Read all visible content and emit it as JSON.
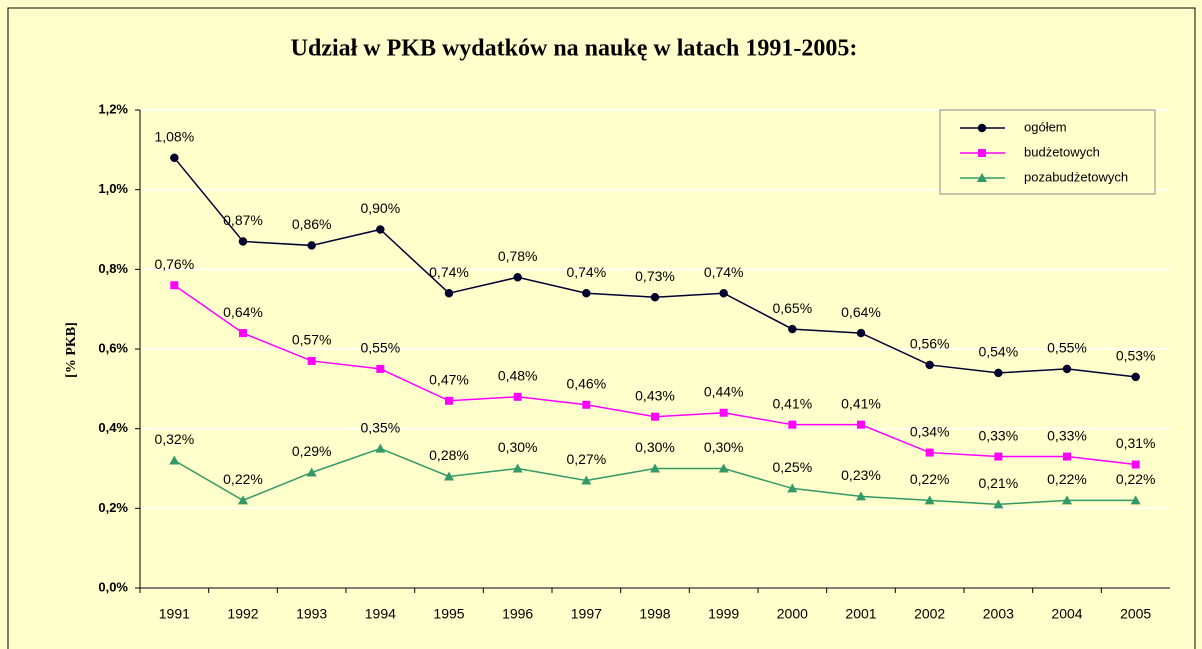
{
  "chart_data": {
    "type": "line",
    "title": "Udział w PKB  wydatków na naukę w latach 1991-2005:",
    "y_label": "[% PKB]",
    "categories": [
      "1991",
      "1992",
      "1993",
      "1994",
      "1995",
      "1996",
      "1997",
      "1998",
      "1999",
      "2000",
      "2001",
      "2002",
      "2003",
      "2004",
      "2005"
    ],
    "series": [
      {
        "name": "ogółem",
        "color": "#000033",
        "marker": "circle",
        "values": [
          1.08,
          0.87,
          0.86,
          0.9,
          0.74,
          0.78,
          0.74,
          0.73,
          0.74,
          0.65,
          0.64,
          0.56,
          0.54,
          0.55,
          0.53
        ],
        "value_labels": [
          "1,08%",
          "0,87%",
          "0,86%",
          "0,90%",
          "0,74%",
          "0,78%",
          "0,74%",
          "0,73%",
          "0,74%",
          "0,65%",
          "0,64%",
          "0,56%",
          "0,54%",
          "0,55%",
          "0,53%"
        ]
      },
      {
        "name": "budżetowych",
        "color": "#ff00ff",
        "marker": "square",
        "values": [
          0.76,
          0.64,
          0.57,
          0.55,
          0.47,
          0.48,
          0.46,
          0.43,
          0.44,
          0.41,
          0.41,
          0.34,
          0.33,
          0.33,
          0.31
        ],
        "value_labels": [
          "0,76%",
          "0,64%",
          "0,57%",
          "0,55%",
          "0,47%",
          "0,48%",
          "0,46%",
          "0,43%",
          "0,44%",
          "0,41%",
          "0,41%",
          "0,34%",
          "0,33%",
          "0,33%",
          "0,31%"
        ]
      },
      {
        "name": "pozabudżetowych",
        "color": "#339966",
        "marker": "triangle",
        "values": [
          0.32,
          0.22,
          0.29,
          0.35,
          0.28,
          0.3,
          0.27,
          0.3,
          0.3,
          0.25,
          0.23,
          0.22,
          0.21,
          0.22,
          0.22
        ],
        "value_labels": [
          "0,32%",
          "0,22%",
          "0,29%",
          "0,35%",
          "0,28%",
          "0,30%",
          "0,27%",
          "0,30%",
          "0,30%",
          "0,25%",
          "0,23%",
          "0,22%",
          "0,21%",
          "0,22%",
          "0,22%"
        ]
      }
    ],
    "ylim": [
      0,
      1.2
    ],
    "yticks": [
      {
        "value": 0,
        "label": "0,0%"
      },
      {
        "value": 0.2,
        "label": "0,2%"
      },
      {
        "value": 0.4,
        "label": "0,4%"
      },
      {
        "value": 0.6,
        "label": "0,6%"
      },
      {
        "value": 0.8,
        "label": "0,8%"
      },
      {
        "value": 1.0,
        "label": "1,0%"
      },
      {
        "value": 1.2,
        "label": "1,2%"
      }
    ],
    "grid": true,
    "legend": "top-right"
  }
}
